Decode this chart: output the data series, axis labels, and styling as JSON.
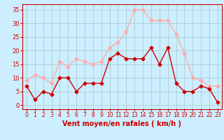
{
  "x": [
    0,
    1,
    2,
    3,
    4,
    5,
    6,
    7,
    8,
    9,
    10,
    11,
    12,
    13,
    14,
    15,
    16,
    17,
    18,
    19,
    20,
    21,
    22,
    23
  ],
  "wind_avg": [
    7,
    2,
    5,
    4,
    10,
    10,
    5,
    8,
    8,
    8,
    17,
    19,
    17,
    17,
    17,
    21,
    15,
    21,
    8,
    5,
    5,
    7,
    6,
    1
  ],
  "wind_gust": [
    9,
    11,
    10,
    8,
    16,
    14,
    17,
    16,
    15,
    16,
    21,
    23,
    27,
    35,
    35,
    31,
    31,
    31,
    26,
    19,
    10,
    9,
    7,
    7
  ],
  "avg_color": "#cc0000",
  "gust_color": "#ffaaaa",
  "bg_color": "#cceeff",
  "grid_color": "#aacccc",
  "xlabel": "Vent moyen/en rafales ( km/h )",
  "xlabel_color": "#cc0000",
  "yticks": [
    0,
    5,
    10,
    15,
    20,
    25,
    30,
    35
  ],
  "xticks": [
    0,
    1,
    2,
    3,
    4,
    5,
    6,
    7,
    8,
    9,
    10,
    11,
    12,
    13,
    14,
    15,
    16,
    17,
    18,
    19,
    20,
    21,
    22,
    23
  ],
  "ylim": [
    -1.5,
    37
  ],
  "xlim": [
    -0.5,
    23.5
  ],
  "tick_color": "#cc0000",
  "markersize": 2.5,
  "linewidth": 1.0
}
